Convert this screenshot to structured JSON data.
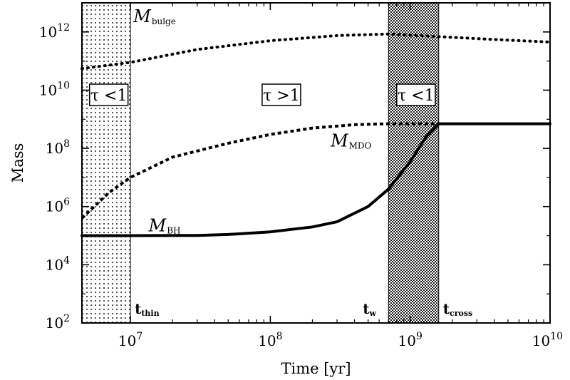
{
  "chart_data": {
    "type": "line",
    "xlabel": "Time [yr]",
    "ylabel": "Mass",
    "x_scale": "log",
    "y_scale": "log",
    "xlim": [
      4500000.0,
      10000000000.0
    ],
    "ylim": [
      100,
      10000000000000.0
    ],
    "x_ticks": [
      {
        "base": "10",
        "exp": "7",
        "value": 10000000.0
      },
      {
        "base": "10",
        "exp": "8",
        "value": 100000000.0
      },
      {
        "base": "10",
        "exp": "9",
        "value": 1000000000.0
      },
      {
        "base": "10",
        "exp": "10",
        "value": 10000000000.0
      }
    ],
    "y_ticks": [
      {
        "base": "10",
        "exp": "2",
        "value": 100.0
      },
      {
        "base": "10",
        "exp": "4",
        "value": 10000.0
      },
      {
        "base": "10",
        "exp": "6",
        "value": 1000000.0
      },
      {
        "base": "10",
        "exp": "8",
        "value": 100000000.0
      },
      {
        "base": "10",
        "exp": "10",
        "value": 10000000000.0
      },
      {
        "base": "10",
        "exp": "12",
        "value": 1000000000000.0
      }
    ],
    "series": [
      {
        "name": "M_bulge",
        "label": {
          "main": "M",
          "sub": "bulge"
        },
        "style": "dotted",
        "x": [
          4500000.0,
          10000000.0,
          30000000.0,
          100000000.0,
          300000000.0,
          700000000.0,
          1500000000.0,
          4000000000.0,
          10000000000.0
        ],
        "y": [
          55000000000.0,
          90000000000.0,
          250000000000.0,
          500000000000.0,
          750000000000.0,
          850000000000.0,
          700000000000.0,
          550000000000.0,
          450000000000.0
        ]
      },
      {
        "name": "M_MDO",
        "label": {
          "main": "M",
          "sub": "MDO"
        },
        "style": "dashed",
        "x": [
          4500000.0,
          7000000.0,
          10000000.0,
          20000000.0,
          50000000.0,
          100000000.0,
          200000000.0,
          400000000.0,
          700000000.0,
          1600000000.0
        ],
        "y": [
          400000.0,
          3000000.0,
          10000000.0,
          50000000.0,
          150000000.0,
          300000000.0,
          500000000.0,
          650000000.0,
          700000000.0,
          700000000.0
        ]
      },
      {
        "name": "M_BH",
        "label": {
          "main": "M",
          "sub": "BH"
        },
        "style": "solid",
        "x": [
          4500000.0,
          10000000.0,
          30000000.0,
          50000000.0,
          100000000.0,
          200000000.0,
          300000000.0,
          500000000.0,
          700000000.0,
          1000000000.0,
          1300000000.0,
          1600000000.0,
          10000000000.0
        ],
        "y": [
          100000.0,
          100000.0,
          102000.0,
          110000.0,
          135000.0,
          200000.0,
          300000.0,
          1000000.0,
          4000000.0,
          35000000.0,
          250000000.0,
          700000000.0,
          700000000.0
        ]
      }
    ],
    "regions": [
      {
        "x_range": [
          4500000.0,
          10000000.0
        ],
        "label": "τ <1",
        "pattern": "light-dots"
      },
      {
        "x_range": [
          10000000.0,
          700000000.0
        ],
        "label": "τ >1",
        "pattern": "none"
      },
      {
        "x_range": [
          700000000.0,
          1600000000.0
        ],
        "label": "τ <1",
        "pattern": "dense-checker"
      }
    ],
    "time_markers": [
      {
        "main": "t",
        "sub": "thin",
        "value": 10000000.0
      },
      {
        "main": "t",
        "sub": "w",
        "value": 700000000.0
      },
      {
        "main": "t",
        "sub": "cross",
        "value": 1600000000.0
      }
    ]
  }
}
